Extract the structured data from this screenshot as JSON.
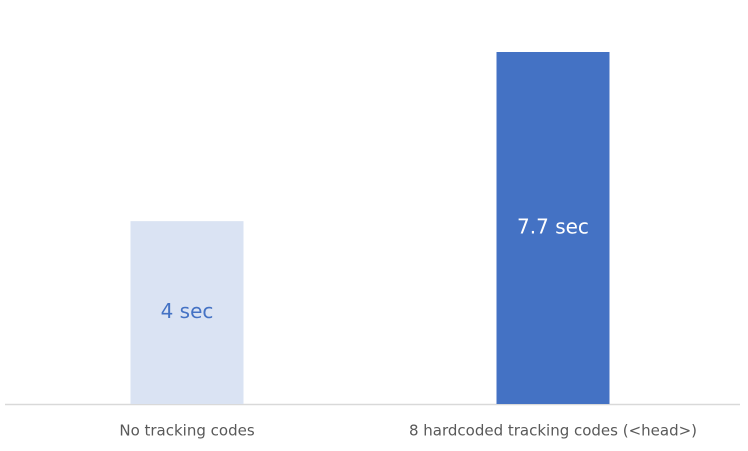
{
  "chart_data": {
    "type": "bar",
    "categories": [
      "No tracking codes",
      "8 hardcoded tracking codes (<head>)"
    ],
    "values": [
      4,
      7.7
    ],
    "value_labels": [
      "4 sec",
      "7.7 sec"
    ],
    "colors": [
      "#dae3f3",
      "#4472c4"
    ],
    "value_label_colors": [
      "#4472c4",
      "#ffffff"
    ]
  }
}
